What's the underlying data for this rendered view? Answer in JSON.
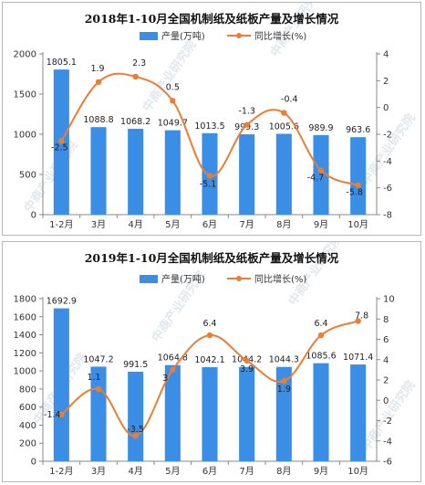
{
  "chart_data": [
    {
      "type": "bar",
      "title": "2018年1-10月全国机制纸及纸板产量及增长情况",
      "categories": [
        "1-2月",
        "3月",
        "4月",
        "5月",
        "6月",
        "7月",
        "8月",
        "9月",
        "10月"
      ],
      "series": [
        {
          "name": "产量(万吨)",
          "type": "bar",
          "axis": "left",
          "values": [
            1805.1,
            1088.8,
            1068.2,
            1049.7,
            1013.5,
            999.3,
            1005.6,
            989.9,
            963.6
          ],
          "labels": [
            "1805.1",
            "1088.8",
            "1068.2",
            "1049.7",
            "1013.5",
            "999.3",
            "1005.6",
            "989.9",
            "963.6"
          ]
        },
        {
          "name": "同比增长(%)",
          "type": "line",
          "axis": "right",
          "values": [
            -2.5,
            1.9,
            2.3,
            0.5,
            -5.1,
            -1.3,
            -0.4,
            -4.7,
            -5.8
          ],
          "labels": [
            "-2.5",
            "1.9",
            "2.3",
            "0.5",
            "-5.1",
            "-1.3",
            "-0.4",
            "-4.7",
            "-5.8"
          ]
        }
      ],
      "y_left": {
        "min": 0,
        "max": 2000,
        "ticks": [
          "0",
          "500",
          "1000",
          "1500",
          "2000"
        ]
      },
      "y_right": {
        "min": -8,
        "max": 4,
        "ticks": [
          "-8",
          "-6",
          "-4",
          "-2",
          "0",
          "2",
          "4"
        ]
      },
      "legend_position": "top-center",
      "grid": false
    },
    {
      "type": "bar",
      "title": "2019年1-10月全国机制纸及纸板产量及增长情况",
      "categories": [
        "1-2月",
        "3月",
        "4月",
        "5月",
        "6月",
        "7月",
        "8月",
        "9月",
        "10月"
      ],
      "series": [
        {
          "name": "产量(万吨)",
          "type": "bar",
          "axis": "left",
          "values": [
            1692.9,
            1047.2,
            991.5,
            1064.8,
            1042.1,
            1044.2,
            1044.3,
            1085.6,
            1071.4
          ],
          "labels": [
            "1692.9",
            "1047.2",
            "991.5",
            "1064.8",
            "1042.1",
            "1044.2",
            "1044.3",
            "1085.6",
            "1071.4"
          ]
        },
        {
          "name": "同比增长(%)",
          "type": "line",
          "axis": "right",
          "values": [
            -1.4,
            1.1,
            -3.5,
            3,
            6.4,
            3.9,
            1.9,
            6.4,
            7.8
          ],
          "labels": [
            "-1.4",
            "1.1",
            "-3.5",
            "3",
            "6.4",
            "3.9",
            "1.9",
            "6.4",
            "7.8"
          ]
        }
      ],
      "y_left": {
        "min": 0,
        "max": 1800,
        "ticks": [
          "0",
          "200",
          "400",
          "600",
          "800",
          "1000",
          "1200",
          "1400",
          "1600",
          "1800"
        ]
      },
      "y_right": {
        "min": -6,
        "max": 10,
        "ticks": [
          "-6",
          "-4",
          "-2",
          "0",
          "2",
          "4",
          "6",
          "8",
          "10"
        ]
      },
      "legend_position": "top-center",
      "grid": false
    }
  ],
  "watermark": {
    "text": "中商产业研究院"
  },
  "colors": {
    "bar": "#3a8ee6",
    "line": "#ed7d31",
    "axis": "#888888"
  }
}
